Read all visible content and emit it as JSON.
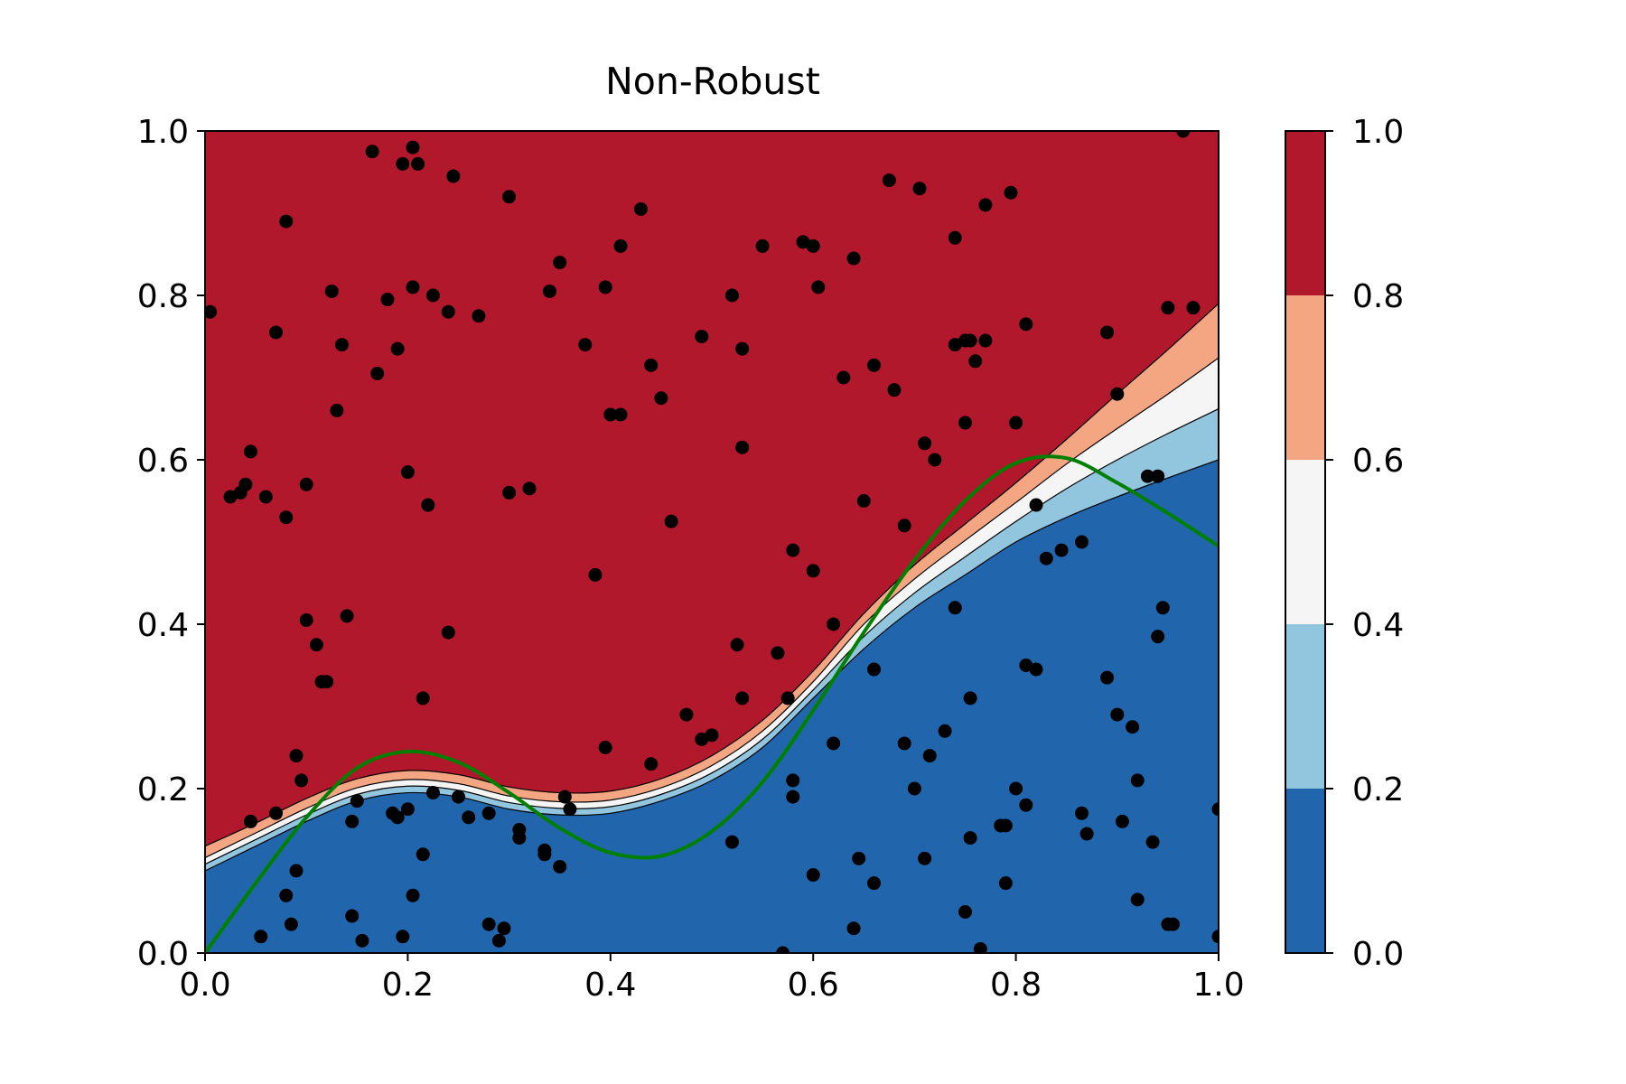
{
  "chart_data": {
    "type": "contour",
    "title": "Non-Robust",
    "xlabel": "",
    "ylabel": "",
    "xlim": [
      0.0,
      1.0
    ],
    "ylim": [
      0.0,
      1.0
    ],
    "x_ticks": [
      "0.0",
      "0.2",
      "0.4",
      "0.6",
      "0.8",
      "1.0"
    ],
    "y_ticks": [
      "0.0",
      "0.2",
      "0.4",
      "0.6",
      "0.8",
      "1.0"
    ],
    "grid": false,
    "colorbar": {
      "ticks": [
        "0.0",
        "0.2",
        "0.4",
        "0.6",
        "0.8",
        "1.0"
      ],
      "levels": [
        {
          "range": [
            0.0,
            0.2
          ],
          "color": "#2166ac"
        },
        {
          "range": [
            0.2,
            0.4
          ],
          "color": "#92c5de"
        },
        {
          "range": [
            0.4,
            0.6
          ],
          "color": "#f5f5f5"
        },
        {
          "range": [
            0.6,
            0.8
          ],
          "color": "#f4a582"
        },
        {
          "range": [
            0.8,
            1.0
          ],
          "color": "#b2182b"
        }
      ]
    },
    "contour_boundaries": {
      "x": [
        0.0,
        0.05,
        0.1,
        0.15,
        0.2,
        0.25,
        0.3,
        0.35,
        0.4,
        0.45,
        0.5,
        0.55,
        0.6,
        0.65,
        0.7,
        0.75,
        0.8,
        0.85,
        0.9,
        0.95,
        1.0
      ],
      "levels": [
        0.2,
        0.4,
        0.6,
        0.8
      ],
      "y": [
        [
          0.1,
          0.13,
          0.16,
          0.185,
          0.195,
          0.19,
          0.175,
          0.168,
          0.17,
          0.185,
          0.21,
          0.25,
          0.31,
          0.37,
          0.42,
          0.46,
          0.5,
          0.53,
          0.555,
          0.578,
          0.6
        ],
        [
          0.108,
          0.138,
          0.168,
          0.193,
          0.203,
          0.198,
          0.183,
          0.176,
          0.178,
          0.193,
          0.219,
          0.26,
          0.32,
          0.385,
          0.438,
          0.482,
          0.525,
          0.565,
          0.6,
          0.632,
          0.662
        ],
        [
          0.116,
          0.146,
          0.176,
          0.201,
          0.211,
          0.206,
          0.191,
          0.184,
          0.186,
          0.201,
          0.228,
          0.27,
          0.33,
          0.4,
          0.455,
          0.502,
          0.548,
          0.595,
          0.638,
          0.68,
          0.724
        ],
        [
          0.13,
          0.158,
          0.188,
          0.212,
          0.222,
          0.217,
          0.202,
          0.195,
          0.197,
          0.212,
          0.24,
          0.283,
          0.343,
          0.413,
          0.472,
          0.522,
          0.572,
          0.625,
          0.68,
          0.734,
          0.79
        ]
      ]
    },
    "green_curve": {
      "color": "#008000",
      "x": [
        0.0,
        0.05,
        0.1,
        0.15,
        0.2,
        0.25,
        0.3,
        0.35,
        0.4,
        0.45,
        0.5,
        0.55,
        0.6,
        0.65,
        0.7,
        0.75,
        0.8,
        0.85,
        0.9,
        0.95,
        1.0
      ],
      "y": [
        0.0,
        0.085,
        0.165,
        0.225,
        0.245,
        0.232,
        0.195,
        0.152,
        0.122,
        0.118,
        0.148,
        0.208,
        0.295,
        0.39,
        0.478,
        0.55,
        0.596,
        0.602,
        0.572,
        0.535,
        0.495
      ]
    },
    "points": {
      "color": "#000000",
      "x": [
        0.005,
        0.165,
        0.205,
        0.195,
        0.21,
        0.08,
        0.245,
        0.41,
        0.3,
        0.43,
        0.55,
        0.59,
        0.64,
        0.675,
        0.705,
        0.74,
        0.77,
        0.795,
        0.965,
        0.06,
        0.125,
        0.18,
        0.205,
        0.225,
        0.24,
        0.27,
        0.35,
        0.395,
        0.41,
        0.44,
        0.49,
        0.52,
        0.53,
        0.605,
        0.63,
        0.66,
        0.68,
        0.75,
        0.755,
        0.77,
        0.81,
        0.9,
        0.95,
        0.975,
        0.045,
        0.04,
        0.035,
        0.025,
        0.08,
        0.07,
        0.1,
        0.13,
        0.135,
        0.17,
        0.19,
        0.2,
        0.22,
        0.3,
        0.32,
        0.34,
        0.375,
        0.385,
        0.4,
        0.45,
        0.46,
        0.53,
        0.58,
        0.6,
        0.65,
        0.69,
        0.72,
        0.75,
        0.8,
        0.82,
        0.89,
        0.93,
        0.94,
        0.6,
        0.76,
        0.71,
        0.74,
        0.62
      ],
      "y": [
        0.78,
        0.975,
        0.98,
        0.96,
        0.96,
        0.89,
        0.945,
        0.86,
        0.92,
        0.905,
        0.86,
        0.865,
        0.845,
        0.94,
        0.93,
        0.87,
        0.91,
        0.925,
        1.0,
        0.555,
        0.805,
        0.795,
        0.81,
        0.8,
        0.78,
        0.775,
        0.84,
        0.81,
        0.655,
        0.715,
        0.75,
        0.8,
        0.735,
        0.81,
        0.7,
        0.715,
        0.685,
        0.745,
        0.745,
        0.745,
        0.765,
        0.68,
        0.785,
        0.785,
        0.61,
        0.57,
        0.56,
        0.555,
        0.53,
        0.755,
        0.57,
        0.66,
        0.74,
        0.705,
        0.735,
        0.585,
        0.545,
        0.56,
        0.565,
        0.805,
        0.74,
        0.46,
        0.655,
        0.675,
        0.525,
        0.615,
        0.49,
        0.465,
        0.55,
        0.52,
        0.6,
        0.645,
        0.645,
        0.545,
        0.755,
        0.58,
        0.58,
        0.86,
        0.72,
        0.62,
        0.74,
        0.4
      ]
    },
    "points_lower": {
      "color": "#000000",
      "x": [
        0.045,
        0.07,
        0.09,
        0.095,
        0.1,
        0.11,
        0.115,
        0.12,
        0.14,
        0.145,
        0.15,
        0.185,
        0.19,
        0.205,
        0.215,
        0.225,
        0.24,
        0.25,
        0.26,
        0.28,
        0.31,
        0.335,
        0.355,
        0.36,
        0.395,
        0.44,
        0.475,
        0.49,
        0.5,
        0.525,
        0.53,
        0.565,
        0.575,
        0.58,
        0.62,
        0.66,
        0.69,
        0.7,
        0.715,
        0.73,
        0.74,
        0.755,
        0.79,
        0.8,
        0.81,
        0.82,
        0.83,
        0.845,
        0.865,
        0.89,
        0.9,
        0.915,
        0.92,
        0.94,
        0.945,
        1.0,
        0.055,
        0.08,
        0.085,
        0.09,
        0.145,
        0.155,
        0.195,
        0.2,
        0.215,
        0.28,
        0.29,
        0.295,
        0.31,
        0.335,
        0.35,
        0.52,
        0.58,
        0.6,
        0.64,
        0.645,
        0.66,
        0.71,
        0.75,
        0.755,
        0.765,
        0.785,
        0.79,
        0.81,
        0.865,
        0.87,
        0.905,
        0.92,
        0.935,
        0.95,
        0.955,
        1.0,
        0.57
      ],
      "y": [
        0.16,
        0.17,
        0.24,
        0.21,
        0.405,
        0.375,
        0.33,
        0.33,
        0.41,
        0.16,
        0.185,
        0.17,
        0.165,
        0.07,
        0.31,
        0.195,
        0.39,
        0.19,
        0.165,
        0.17,
        0.15,
        0.125,
        0.19,
        0.175,
        0.25,
        0.23,
        0.29,
        0.26,
        0.265,
        0.375,
        0.31,
        0.365,
        0.31,
        0.21,
        0.255,
        0.345,
        0.255,
        0.2,
        0.24,
        0.27,
        0.42,
        0.31,
        0.155,
        0.2,
        0.35,
        0.345,
        0.48,
        0.49,
        0.5,
        0.335,
        0.29,
        0.275,
        0.21,
        0.385,
        0.42,
        0.175,
        0.02,
        0.07,
        0.035,
        0.1,
        0.045,
        0.015,
        0.02,
        0.175,
        0.12,
        0.035,
        0.015,
        0.03,
        0.14,
        0.12,
        0.105,
        0.135,
        0.19,
        0.095,
        0.03,
        0.115,
        0.085,
        0.115,
        0.05,
        0.14,
        0.005,
        0.155,
        0.085,
        0.18,
        0.17,
        0.145,
        0.16,
        0.065,
        0.135,
        0.035,
        0.035,
        0.02,
        0.0
      ]
    }
  }
}
